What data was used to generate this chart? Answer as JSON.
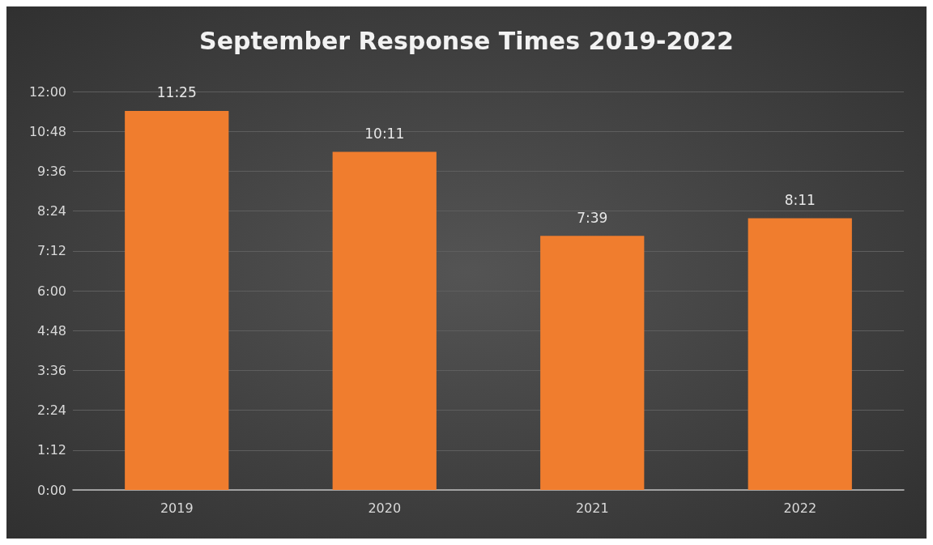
{
  "chart_data": {
    "type": "bar",
    "title": "September Response Times 2019-2022",
    "categories": [
      "2019",
      "2020",
      "2021",
      "2022"
    ],
    "values": [
      11.4167,
      10.1833,
      7.65,
      8.1833
    ],
    "value_labels": [
      "11:25",
      "10:11",
      "7:39",
      "8:11"
    ],
    "color": "#f07d2e",
    "ylim": [
      0,
      12
    ],
    "yticks": [
      {
        "value": 0,
        "label": "0:00"
      },
      {
        "value": 1.2,
        "label": "1:12"
      },
      {
        "value": 2.4,
        "label": "2:24"
      },
      {
        "value": 3.6,
        "label": "3:36"
      },
      {
        "value": 4.8,
        "label": "4:48"
      },
      {
        "value": 6,
        "label": "6:00"
      },
      {
        "value": 7.2,
        "label": "7:12"
      },
      {
        "value": 8.4,
        "label": "8:24"
      },
      {
        "value": 9.6,
        "label": "9:36"
      },
      {
        "value": 10.8,
        "label": "10:48"
      },
      {
        "value": 12,
        "label": "12:00"
      }
    ],
    "grid": "y"
  }
}
